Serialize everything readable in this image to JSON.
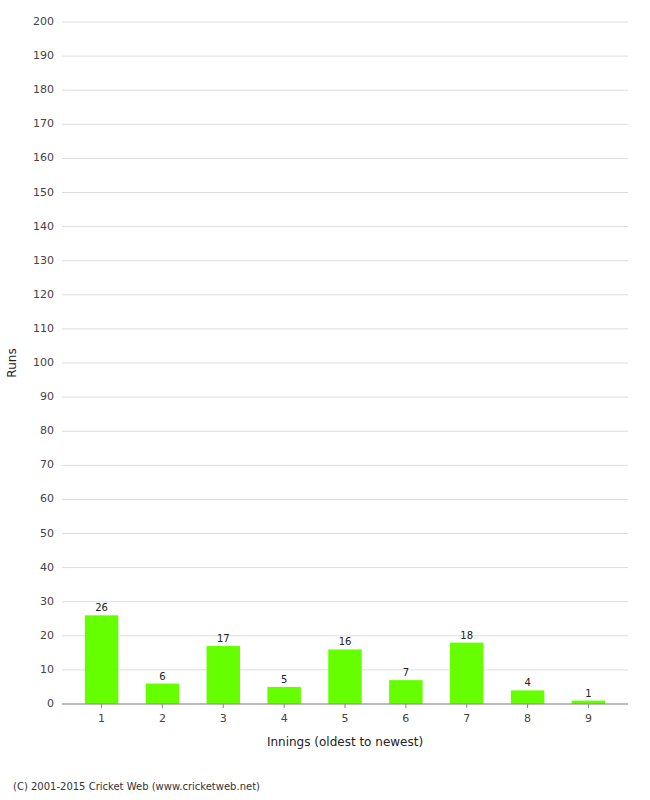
{
  "chart_data": {
    "type": "bar",
    "x": [
      1,
      2,
      3,
      4,
      5,
      6,
      7,
      8,
      9
    ],
    "values": [
      26,
      6,
      17,
      5,
      16,
      7,
      18,
      4,
      1
    ],
    "color": "#66ff00",
    "xlabel": "Innings (oldest to newest)",
    "ylabel": "Runs",
    "xlim": [
      0.35,
      9.65
    ],
    "xticks": [
      1,
      2,
      3,
      4,
      5,
      6,
      7,
      8,
      9
    ],
    "ylim": [
      0,
      200
    ],
    "yticks": [
      0,
      10,
      20,
      30,
      40,
      50,
      60,
      70,
      80,
      90,
      100,
      110,
      120,
      130,
      140,
      150,
      160,
      170,
      180,
      190,
      200
    ],
    "grid": true,
    "data_labels": true,
    "annotations": [
      "(C) 2001-2015 Cricket Web (www.cricketweb.net)"
    ]
  }
}
